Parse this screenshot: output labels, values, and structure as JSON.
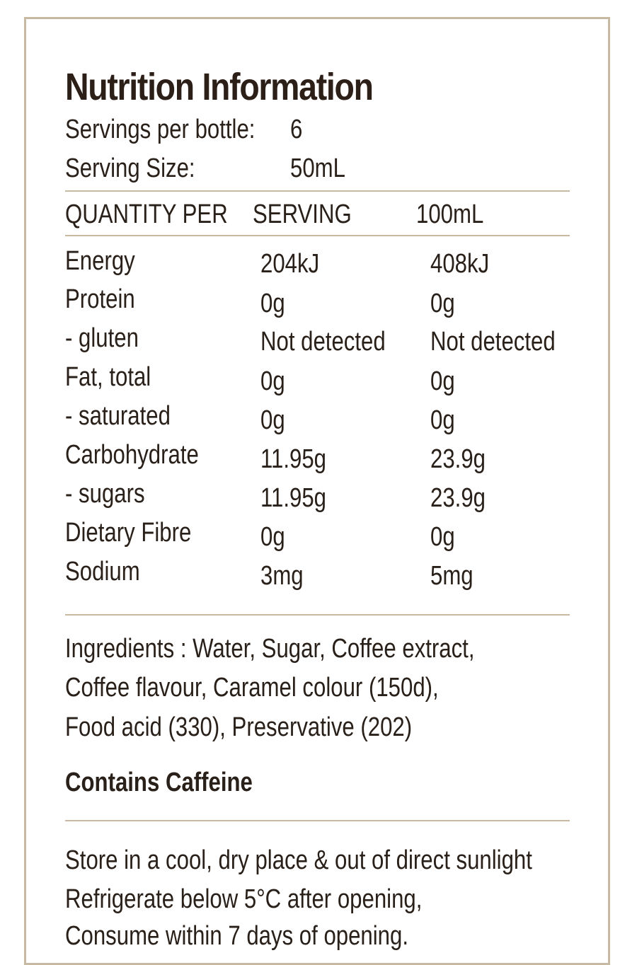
{
  "panel": {
    "title": "Nutrition Information",
    "servings_per_bottle_label": "Servings per bottle:",
    "servings_per_bottle_value": "6",
    "serving_size_label": "Serving Size:",
    "serving_size_value": "50mL"
  },
  "table": {
    "headers": [
      "QUANTITY PER",
      "SERVING",
      "100mL"
    ],
    "rows": [
      {
        "name": "Energy",
        "serving": "204kJ",
        "per100": "408kJ"
      },
      {
        "name": "Protein",
        "serving": "0g",
        "per100": "0g"
      },
      {
        "name": "- gluten",
        "serving": "Not detected",
        "per100": "Not detected"
      },
      {
        "name": "Fat, total",
        "serving": "0g",
        "per100": "0g"
      },
      {
        "name": "- saturated",
        "serving": "0g",
        "per100": "0g"
      },
      {
        "name": "Carbohydrate",
        "serving": "11.95g",
        "per100": "23.9g"
      },
      {
        "name": "- sugars",
        "serving": "11.95g",
        "per100": "23.9g"
      },
      {
        "name": "Dietary Fibre",
        "serving": "0g",
        "per100": "0g"
      },
      {
        "name": "Sodium",
        "serving": "3mg",
        "per100": "5mg"
      }
    ]
  },
  "ingredients": [
    "Ingredients : Water, Sugar, Coffee extract,",
    "Coffee flavour, Caramel colour (150d),",
    "Food acid (330), Preservative (202)"
  ],
  "caffeine_notice": "Contains Caffeine",
  "storage": [
    "Store in a cool, dry place & out of direct sunlight",
    "Refrigerate below 5°C after opening,",
    "Consume within 7 days of opening."
  ],
  "colors": {
    "rule": "#c8b9a2",
    "text": "#2a201a",
    "border": "#c8b9a2"
  }
}
